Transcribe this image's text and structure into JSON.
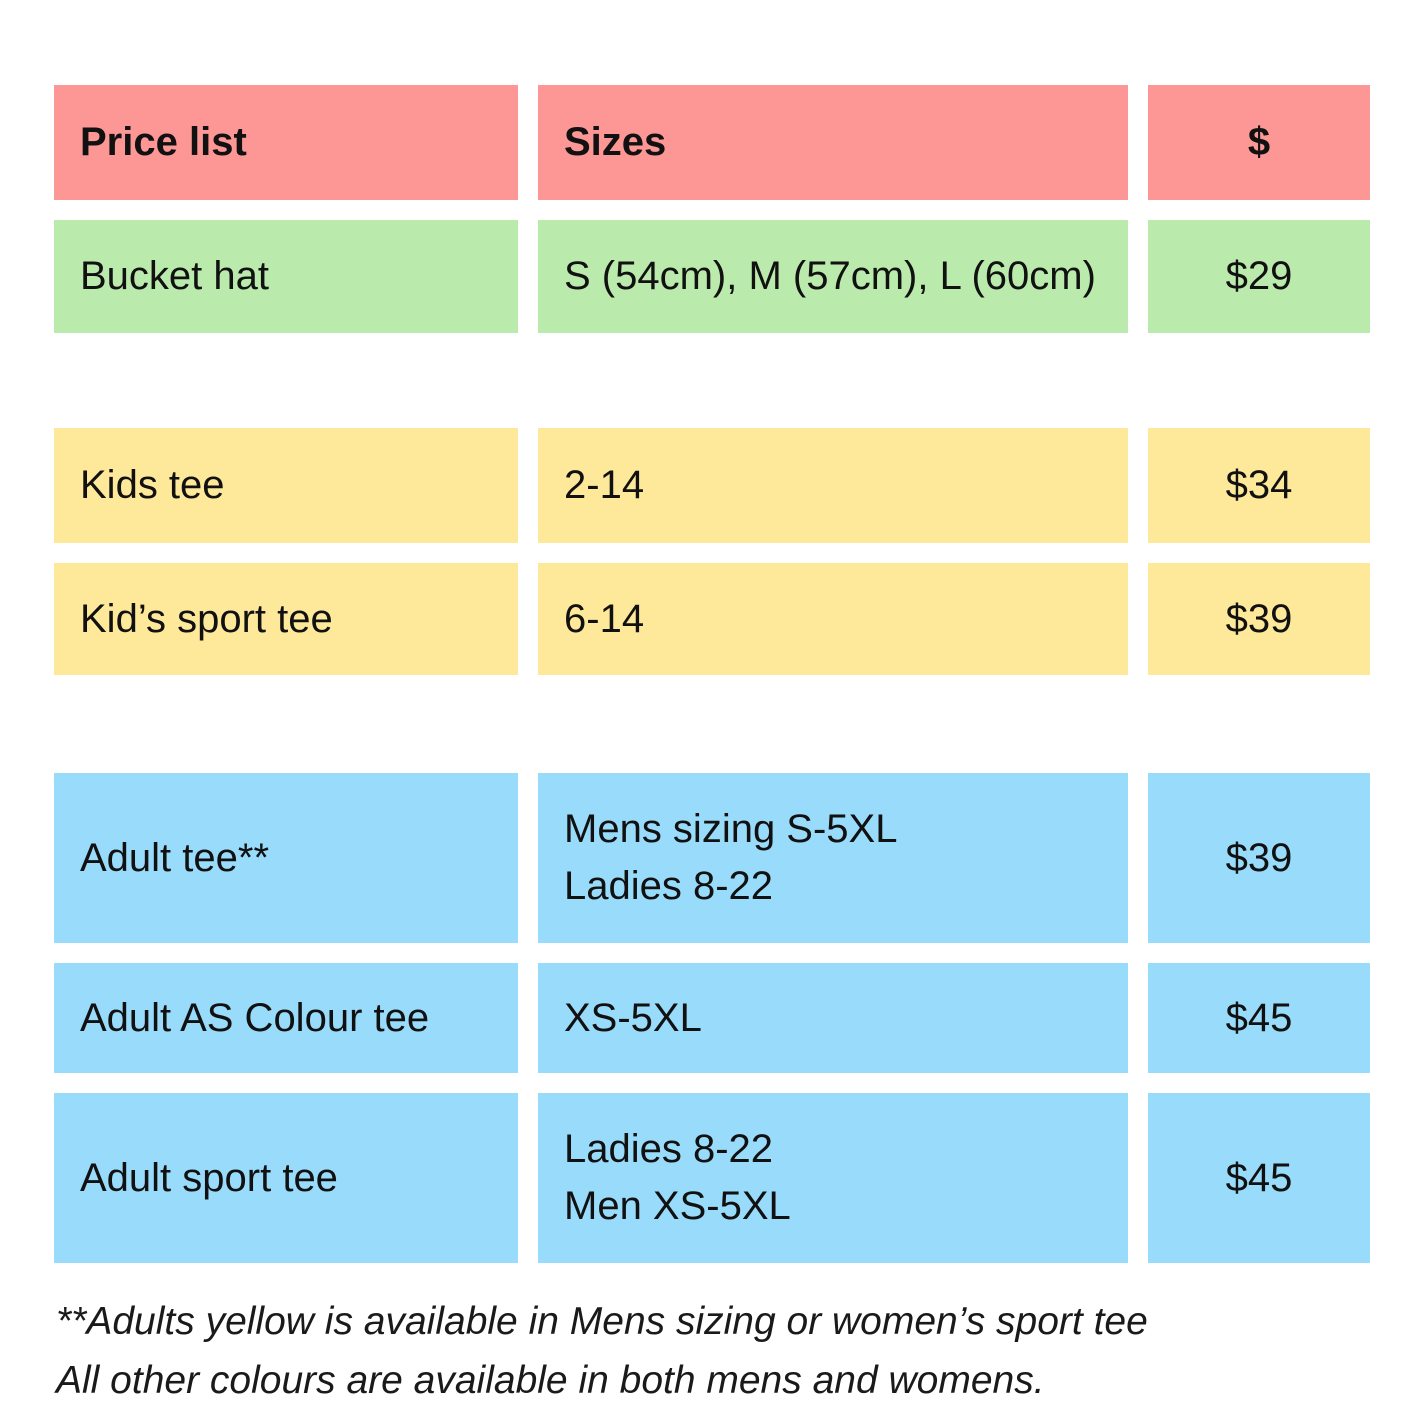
{
  "colors": {
    "header": "#FC9795",
    "green": "#BBEBAC",
    "yellow": "#FEE89A",
    "blue": "#99DBFB"
  },
  "table": {
    "header": {
      "col1": "Price list",
      "col2": "Sizes",
      "col3": "$"
    },
    "rows": [
      {
        "item": "Bucket hat",
        "sizes": [
          "S (54cm), M (57cm), L (60cm)"
        ],
        "price": "$29"
      },
      {
        "item": "Kids tee",
        "sizes": [
          "2-14"
        ],
        "price": "$34"
      },
      {
        "item": "Kid’s sport tee",
        "sizes": [
          "6-14"
        ],
        "price": "$39"
      },
      {
        "item": "Adult tee**",
        "sizes": [
          "Mens sizing S-5XL",
          "Ladies 8-22"
        ],
        "price": "$39"
      },
      {
        "item": "Adult AS Colour tee",
        "sizes": [
          "XS-5XL"
        ],
        "price": "$45"
      },
      {
        "item": "Adult sport tee",
        "sizes": [
          "Ladies 8-22",
          "Men XS-5XL"
        ],
        "price": "$45"
      }
    ]
  },
  "footnotes": [
    "**Adults yellow is available in Mens sizing or women’s sport tee",
    "All other colours are available in both mens and womens."
  ]
}
